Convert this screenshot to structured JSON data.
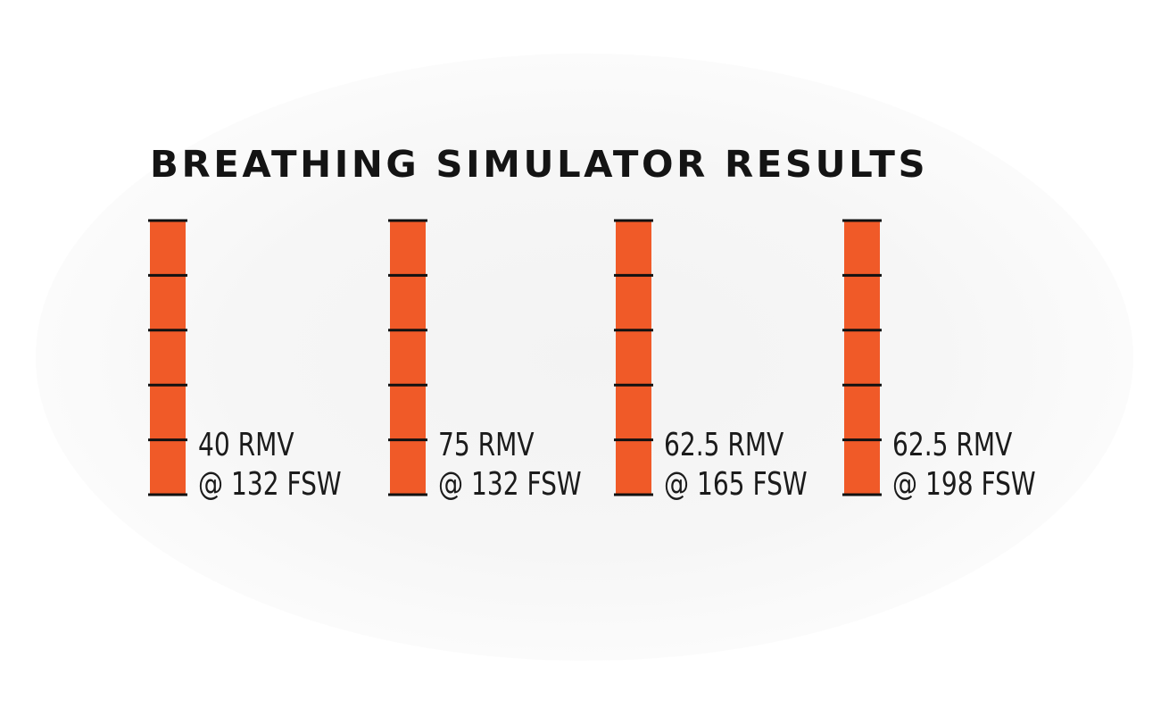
{
  "chart_data": {
    "type": "bar",
    "title": "BREATHING SIMULATOR RESULTS",
    "segments_per_bar": 5,
    "bar_color": "#f05a28",
    "tick_color": "#111111",
    "series": [
      {
        "label_line1": "40 RMV",
        "label_line2": "@ 132 FSW",
        "rmv": 40,
        "depth_fsw": 132
      },
      {
        "label_line1": "75 RMV",
        "label_line2": "@ 132 FSW",
        "rmv": 75,
        "depth_fsw": 132
      },
      {
        "label_line1": "62.5 RMV",
        "label_line2": "@ 165 FSW",
        "rmv": 62.5,
        "depth_fsw": 165
      },
      {
        "label_line1": "62.5 RMV",
        "label_line2": "@ 198 FSW",
        "rmv": 62.5,
        "depth_fsw": 198
      }
    ]
  }
}
